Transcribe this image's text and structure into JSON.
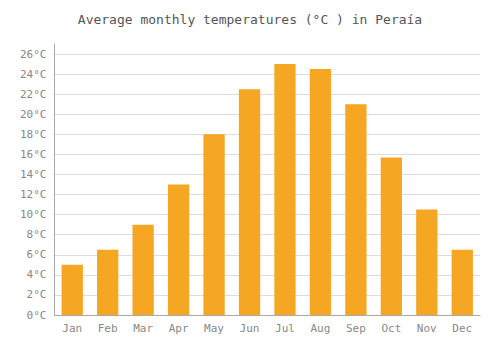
{
  "chart_data": {
    "type": "bar",
    "title": "Average monthly temperatures (°C ) in Peraía",
    "categories": [
      "Jan",
      "Feb",
      "Mar",
      "Apr",
      "May",
      "Jun",
      "Jul",
      "Aug",
      "Sep",
      "Oct",
      "Nov",
      "Dec"
    ],
    "values": [
      5.0,
      6.5,
      9.0,
      13.0,
      18.0,
      22.5,
      25.0,
      24.5,
      21.0,
      15.7,
      10.5,
      6.5
    ],
    "color": "#F5A623",
    "ylim": [
      0,
      27
    ],
    "yticks": [
      {
        "value": 0,
        "label": "0°C"
      },
      {
        "value": 2,
        "label": "2°C"
      },
      {
        "value": 4,
        "label": "4°C"
      },
      {
        "value": 6,
        "label": "6°C"
      },
      {
        "value": 8,
        "label": "8°C"
      },
      {
        "value": 10,
        "label": "10°C"
      },
      {
        "value": 12,
        "label": "12°C"
      },
      {
        "value": 14,
        "label": "14°C"
      },
      {
        "value": 16,
        "label": "16°C"
      },
      {
        "value": 18,
        "label": "18°C"
      },
      {
        "value": 20,
        "label": "20°C"
      },
      {
        "value": 22,
        "label": "22°C"
      },
      {
        "value": 24,
        "label": "24°C"
      },
      {
        "value": 26,
        "label": "26°C"
      }
    ],
    "grid": true
  }
}
